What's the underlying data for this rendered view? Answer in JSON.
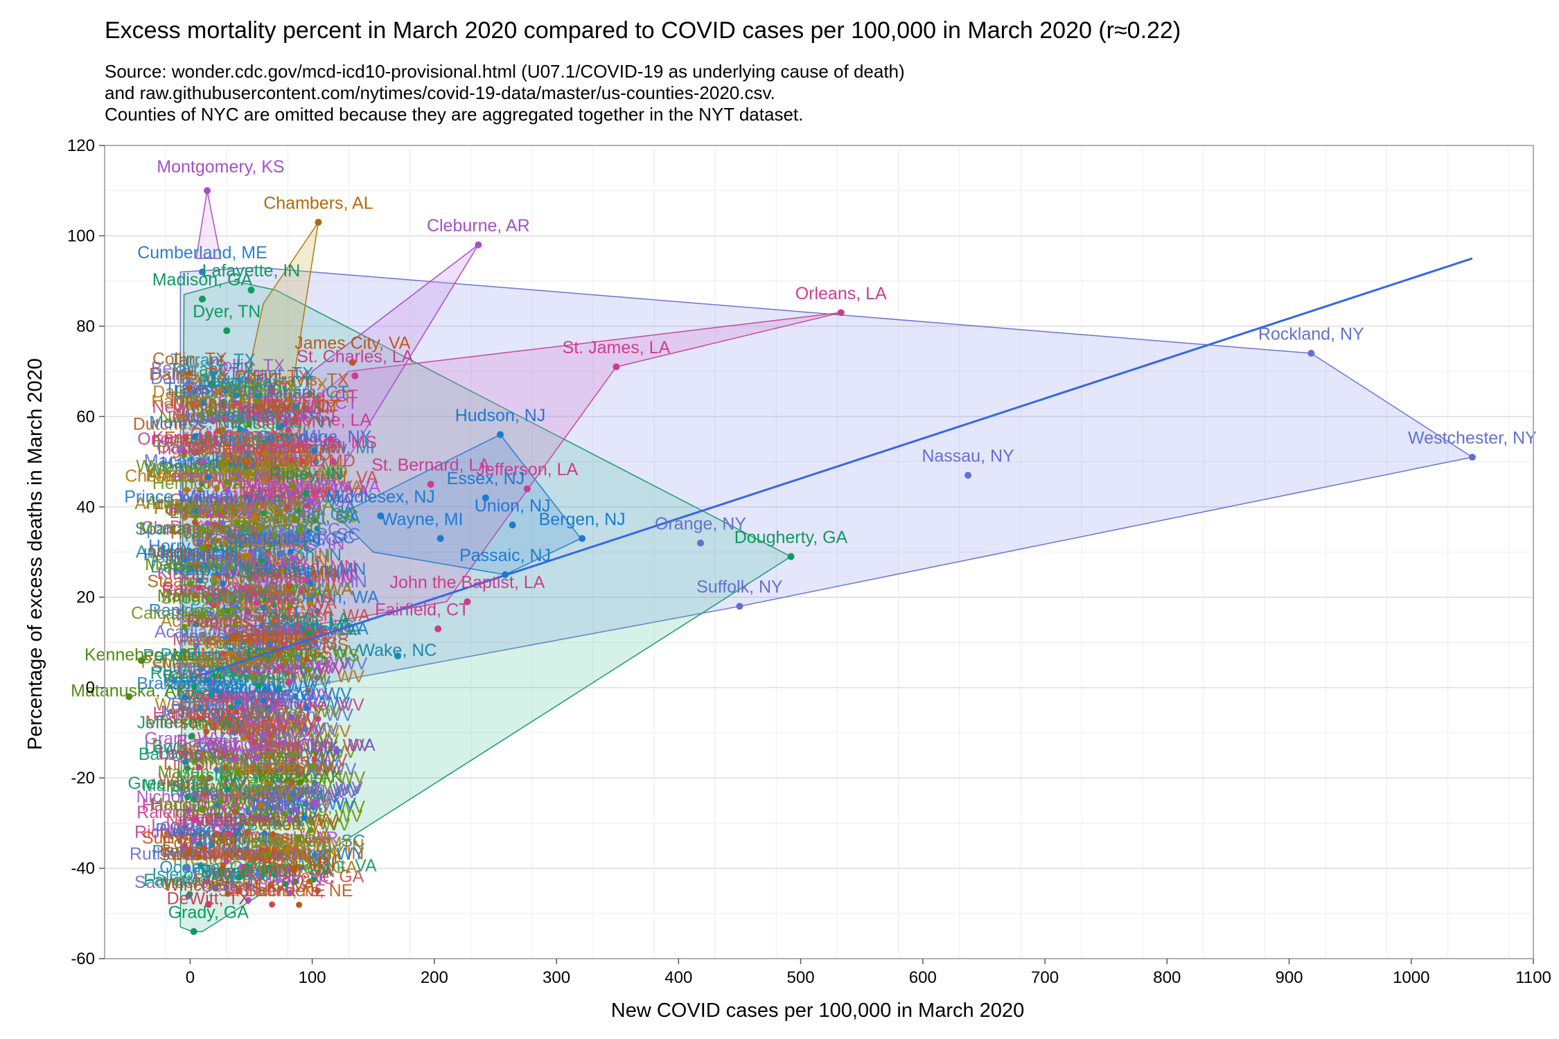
{
  "chart_data": {
    "type": "scatter",
    "title": "Excess mortality percent in March 2020 compared to COVID cases per 100,000 in March 2020 (r≈0.22)",
    "subtitle_lines": [
      "Source: wonder.cdc.gov/mcd-icd10-provisional.html (U07.1/COVID-19 as underlying cause of death)",
      "and raw.githubusercontent.com/nytimes/covid-19-data/master/us-counties-2020.csv.",
      "Counties of NYC are omitted because they are aggregated together in the NYT dataset."
    ],
    "xlabel": "New COVID cases per 100,000 in March 2020",
    "ylabel": "Percentage of excess deaths in March 2020",
    "xlim": [
      -70,
      1100
    ],
    "ylim": [
      -60,
      120
    ],
    "x_ticks": [
      0,
      100,
      200,
      300,
      400,
      500,
      600,
      700,
      800,
      900,
      1000,
      1100
    ],
    "y_ticks": [
      -60,
      -40,
      -20,
      0,
      20,
      40,
      60,
      80,
      100,
      120
    ],
    "grid": true,
    "regression_line": {
      "x": [
        0,
        1050
      ],
      "y": [
        2,
        95
      ],
      "color": "#3566e6"
    },
    "colors": {
      "NY": "#6470cf",
      "NJ": "#1d7ad0",
      "LA": "#cc3d8e",
      "AR": "#a64ecc",
      "KS": "#a64ecc",
      "AL": "#b06a0a",
      "GA": "#0f9a5e",
      "IN": "#0f9a5e",
      "VA": "#b85a18",
      "WV": "#6a9216",
      "MS": "#cc3d8e",
      "AK": "#4e8c12",
      "WA": "#7060cf",
      "MN": "#b85a18",
      "NC": "#1a8aaa",
      "MI": "#1d7ad0",
      "ME": "#2a7fd0",
      "CT": "#cc3d8e",
      "TX": "#cc4060",
      "SC": "#cc3d8e",
      "other": "#c94c4c"
    },
    "hulls": [
      {
        "group": "NY",
        "fill": "rgba(118,128,238,0.20)",
        "stroke": "#6a74d4",
        "vertices": [
          [
            1050,
            51
          ],
          [
            918,
            74
          ],
          [
            55,
            93
          ],
          [
            -8,
            92
          ],
          [
            -8,
            -5
          ],
          [
            450,
            18
          ]
        ]
      },
      {
        "group": "GA",
        "fill": "rgba(70,190,150,0.22)",
        "stroke": "#1a9a6a",
        "vertices": [
          [
            492,
            29
          ],
          [
            70,
            88
          ],
          [
            35,
            90
          ],
          [
            -5,
            87
          ],
          [
            -8,
            -53
          ],
          [
            2,
            -54
          ],
          [
            10,
            -54
          ]
        ]
      },
      {
        "group": "LA",
        "fill": "rgba(214,120,200,0.25)",
        "stroke": "#c04aa0",
        "vertices": [
          [
            533,
            83
          ],
          [
            130,
            70
          ],
          [
            40,
            50
          ],
          [
            20,
            10
          ],
          [
            210,
            19
          ],
          [
            349,
            71
          ]
        ]
      },
      {
        "group": "AR",
        "fill": "rgba(200,140,230,0.28)",
        "stroke": "#a64ecc",
        "vertices": [
          [
            236,
            98
          ],
          [
            100,
            70
          ],
          [
            40,
            30
          ],
          [
            60,
            20
          ]
        ]
      },
      {
        "group": "NJ",
        "fill": "rgba(60,140,220,0.20)",
        "stroke": "#2a7fd0",
        "vertices": [
          [
            254,
            56
          ],
          [
            320,
            33
          ],
          [
            258,
            25
          ],
          [
            150,
            30
          ],
          [
            120,
            38
          ]
        ]
      },
      {
        "group": "AL",
        "fill": "rgba(210,180,90,0.28)",
        "stroke": "#b07a10",
        "vertices": [
          [
            105,
            103
          ],
          [
            60,
            85
          ],
          [
            40,
            60
          ],
          [
            80,
            60
          ]
        ]
      },
      {
        "group": "KS",
        "fill": "rgba(220,160,230,0.25)",
        "stroke": "#b050c0",
        "vertices": [
          [
            14,
            110
          ],
          [
            5,
            95
          ],
          [
            25,
            95
          ]
        ]
      }
    ],
    "labeled_points": [
      {
        "label": "Montgomery, KS",
        "x": 14,
        "y": 110,
        "group": "KS",
        "lx": 25,
        "ly": 114
      },
      {
        "label": "Chambers, AL",
        "x": 105,
        "y": 103,
        "group": "AL",
        "lx": 105,
        "ly": 106
      },
      {
        "label": "Cleburne, AR",
        "x": 236,
        "y": 98,
        "group": "AR",
        "lx": 236,
        "ly": 101
      },
      {
        "label": "Orleans, LA",
        "x": 533,
        "y": 83,
        "group": "LA",
        "lx": 533,
        "ly": 86
      },
      {
        "label": "Rockland, NY",
        "x": 918,
        "y": 74,
        "group": "NY",
        "lx": 918,
        "ly": 77
      },
      {
        "label": "St. James, LA",
        "x": 349,
        "y": 71,
        "group": "LA",
        "lx": 349,
        "ly": 74
      },
      {
        "label": "Hudson, NJ",
        "x": 254,
        "y": 56,
        "group": "NJ",
        "lx": 254,
        "ly": 59
      },
      {
        "label": "Westchester, NY",
        "x": 1050,
        "y": 51,
        "group": "NY",
        "lx": 1050,
        "ly": 54
      },
      {
        "label": "Nassau, NY",
        "x": 637,
        "y": 47,
        "group": "NY",
        "lx": 637,
        "ly": 50
      },
      {
        "label": "St. Bernard, LA",
        "x": 197,
        "y": 45,
        "group": "LA",
        "lx": 197,
        "ly": 48
      },
      {
        "label": "Jefferson, LA",
        "x": 276,
        "y": 44,
        "group": "LA",
        "lx": 276,
        "ly": 47
      },
      {
        "label": "Essex, NJ",
        "x": 242,
        "y": 42,
        "group": "NJ",
        "lx": 242,
        "ly": 45
      },
      {
        "label": "Middlesex, NJ",
        "x": 156,
        "y": 38,
        "group": "NJ",
        "lx": 156,
        "ly": 41
      },
      {
        "label": "Union, NJ",
        "x": 264,
        "y": 36,
        "group": "NJ",
        "lx": 264,
        "ly": 39
      },
      {
        "label": "Bergen, NJ",
        "x": 321,
        "y": 33,
        "group": "NJ",
        "lx": 321,
        "ly": 36
      },
      {
        "label": "Orange, NY",
        "x": 418,
        "y": 32,
        "group": "NY",
        "lx": 418,
        "ly": 35
      },
      {
        "label": "Dougherty, GA",
        "x": 492,
        "y": 29,
        "group": "GA",
        "lx": 492,
        "ly": 32
      },
      {
        "label": "Passaic, NJ",
        "x": 258,
        "y": 25,
        "group": "NJ",
        "lx": 258,
        "ly": 28
      },
      {
        "label": "Suffolk, NY",
        "x": 450,
        "y": 18,
        "group": "NY",
        "lx": 450,
        "ly": 21
      },
      {
        "label": "John the Baptist, LA",
        "x": 227,
        "y": 19,
        "group": "LA",
        "lx": 227,
        "ly": 22
      },
      {
        "label": "James City, VA",
        "x": 133,
        "y": 72,
        "group": "VA",
        "lx": 133,
        "ly": 75
      },
      {
        "label": "St. Charles, LA",
        "x": 135,
        "y": 69,
        "group": "LA",
        "lx": 135,
        "ly": 72
      },
      {
        "label": "Terrebonne, LA",
        "x": 115,
        "y": 55,
        "group": "LA",
        "lx": 100,
        "ly": 58
      },
      {
        "label": "Madison, GA",
        "x": 10,
        "y": 86,
        "group": "GA",
        "lx": 10,
        "ly": 89
      },
      {
        "label": "Dyer, TN",
        "x": 30,
        "y": 79,
        "group": "GA",
        "lx": 30,
        "ly": 82
      },
      {
        "label": "Cumberland, ME",
        "x": 10,
        "y": 92,
        "group": "ME",
        "lx": 10,
        "ly": 95
      },
      {
        "label": "Lafayette, IN",
        "x": 50,
        "y": 88,
        "group": "IN",
        "lx": 50,
        "ly": 91
      },
      {
        "label": "Ouachita, MS",
        "x": 117,
        "y": 50,
        "group": "MS",
        "lx": 110,
        "ly": 53
      },
      {
        "label": "Marion, WV",
        "x": 10,
        "y": 16,
        "group": "WV",
        "lx": 10,
        "ly": 19
      },
      {
        "label": "Monongalia, WV",
        "x": 10,
        "y": 31,
        "group": "WV",
        "lx": 10,
        "ly": 34
      },
      {
        "label": "Mercer, WV",
        "x": 0,
        "y": 23,
        "group": "WV",
        "lx": 0,
        "ly": 26
      },
      {
        "label": "Ohio, WV",
        "x": 10,
        "y": 35,
        "group": "WV",
        "lx": 10,
        "ly": 38
      },
      {
        "label": "Ripley, IN",
        "x": 95,
        "y": 43,
        "group": "IN",
        "lx": 95,
        "ly": 46
      },
      {
        "label": "Wayne, MI",
        "x": 205,
        "y": 33,
        "group": "MI",
        "lx": 190,
        "ly": 36
      },
      {
        "label": "Fairfield, CT",
        "x": 203,
        "y": 13,
        "group": "CT",
        "lx": 190,
        "ly": 16
      },
      {
        "label": "Kennebec, ME",
        "x": -40,
        "y": 6,
        "group": "AK",
        "lx": -40,
        "ly": 6
      },
      {
        "label": "Matanuska, AK",
        "x": -50,
        "y": -2,
        "group": "AK",
        "lx": -50,
        "ly": -2
      },
      {
        "label": "Wake, NC",
        "x": 170,
        "y": 7,
        "group": "NC",
        "lx": 170,
        "ly": 7
      },
      {
        "label": "Clark, WA",
        "x": 120,
        "y": -14,
        "group": "WA",
        "lx": 120,
        "ly": -14
      },
      {
        "label": "Mason, WV",
        "x": 10,
        "y": -20,
        "group": "WV",
        "lx": 10,
        "ly": -20
      },
      {
        "label": "Harrison, WV",
        "x": 10,
        "y": -27,
        "group": "WV",
        "lx": 10,
        "ly": -27
      },
      {
        "label": "Kodiak, AK",
        "x": 90,
        "y": -21,
        "group": "AK",
        "lx": 90,
        "ly": -21
      },
      {
        "label": "Itasca, MN",
        "x": 85,
        "y": -40,
        "group": "MN",
        "lx": 85,
        "ly": -40
      },
      {
        "label": "Boone, IN",
        "x": 40,
        "y": -42,
        "group": "IN",
        "lx": 40,
        "ly": -42
      },
      {
        "label": "Winchester City, VA",
        "x": 40,
        "y": -45,
        "group": "VA",
        "lx": 40,
        "ly": -45
      },
      {
        "label": "DeWitt, TX",
        "x": 15,
        "y": -48,
        "group": "TX",
        "lx": 15,
        "ly": -48
      },
      {
        "label": "Grady, GA",
        "x": 3,
        "y": -54,
        "group": "GA",
        "lx": 15,
        "ly": -51
      }
    ],
    "cluster_labels": [
      "Saunders, NE",
      "Fayette, GA",
      "Oconee, GA",
      "Dyer, TN",
      "Rowan, NC",
      "Isle of Wight, VA",
      "Vanderburgh, IN",
      "Rutherford, TN",
      "Preston, WV",
      "Sweetwater, WY",
      "Sullivan, NY",
      "Walker, GA",
      "Richland, SC",
      "Eddy, NM",
      "Pulaski, AR",
      "Wood, WV",
      "Pocahontas, WV",
      "Logan, WV",
      "Hancock, WV",
      "Berkeley, WV",
      "Nicholas, WV",
      "Raleigh, WV",
      "Putnam, WV",
      "Wyoming, WV",
      "Mingo, WV",
      "Kanawha, WV",
      "Cabell, WV",
      "Wayne, WV",
      "Greenbrier, WV",
      "Marshall, WV",
      "Hardy, WV",
      "Jackson, WV",
      "Lincoln, WV",
      "Fayette, WV",
      "Boone, WV",
      "Upshur, WV",
      "Barbour, WV",
      "Taylor, WV",
      "Lewis, WV",
      "Randolph, WV",
      "Tucker, WV",
      "Grant, WV",
      "Mineral, WV",
      "Hampshire, WV",
      "Morgan, WV",
      "Jefferson, WV",
      "Brooke, WV",
      "Tyler, WV",
      "Wetzel, WV",
      "Ritchie, WV",
      "Doddridge, WV",
      "Gilmer, WV",
      "Calhoun, WV",
      "Roane, WV",
      "Clay, WV",
      "Braxton, WV",
      "Webster, WV",
      "Summers, WV",
      "Monroe, WV",
      "McDowell, WV",
      "Pendleton, WV",
      "Pleasants, WV",
      "Madison, MS",
      "Hinds, MS",
      "Lamar, MS",
      "Forrest, MS",
      "Harrison, MS",
      "Jackson, MS",
      "DeSoto, MS",
      "Acadia, LA",
      "Lafourche, LA",
      "Caddo, LA",
      "Calcasieu, LA",
      "Rapides, LA",
      "Tangipahoa, LA",
      "Snohomish, WA",
      "King, WA",
      "Pierce, WA",
      "Yakima, WA",
      "Spokane, WA",
      "Kitsap, WA",
      "Hennepin, MN",
      "Ramsey, MN",
      "Olmsted, MN",
      "Stearns, MN",
      "Delaware, IN",
      "Johnson, IN",
      "Hamilton, IN",
      "Hendricks, IN",
      "Madison, IN",
      "Marion, IN",
      "Anderson, SC",
      "Greenville, SC",
      "Spartanburg, SC",
      "Horry, SC",
      "Charleston, SC",
      "York, SC",
      "Cobb, GA",
      "DeKalb, GA",
      "Gwinnett, GA",
      "Fulton, GA",
      "Clayton, GA",
      "Henry, GA",
      "Loudoun, VA",
      "Fairfax, VA",
      "Arlington, VA",
      "Prince William, VA",
      "Henrico, VA",
      "Chesterfield, VA",
      "Wicomico, MD",
      "Anne Arundel, MD",
      "Howard, MD",
      "Frederick, MD",
      "Carroll, MD",
      "Harford, MD",
      "Washtenaw, MI",
      "Oakland, MI",
      "Macomb, MI",
      "Genesee, MI",
      "Kent, MI",
      "Ingham, MI",
      "Onondaga, NY",
      "Erie, NY",
      "Monroe, NY",
      "Albany, NY",
      "Ulster, NY",
      "Dutchess, NY",
      "Hartford, CT",
      "New Haven, CT",
      "Litchfield, CT",
      "Tolland, CT",
      "Middlesex, CT",
      "Windham, CT",
      "Travis, TX",
      "Dallas, TX",
      "Harris, TX",
      "Bexar, TX",
      "Tarrant, TX",
      "Collin, TX"
    ]
  }
}
